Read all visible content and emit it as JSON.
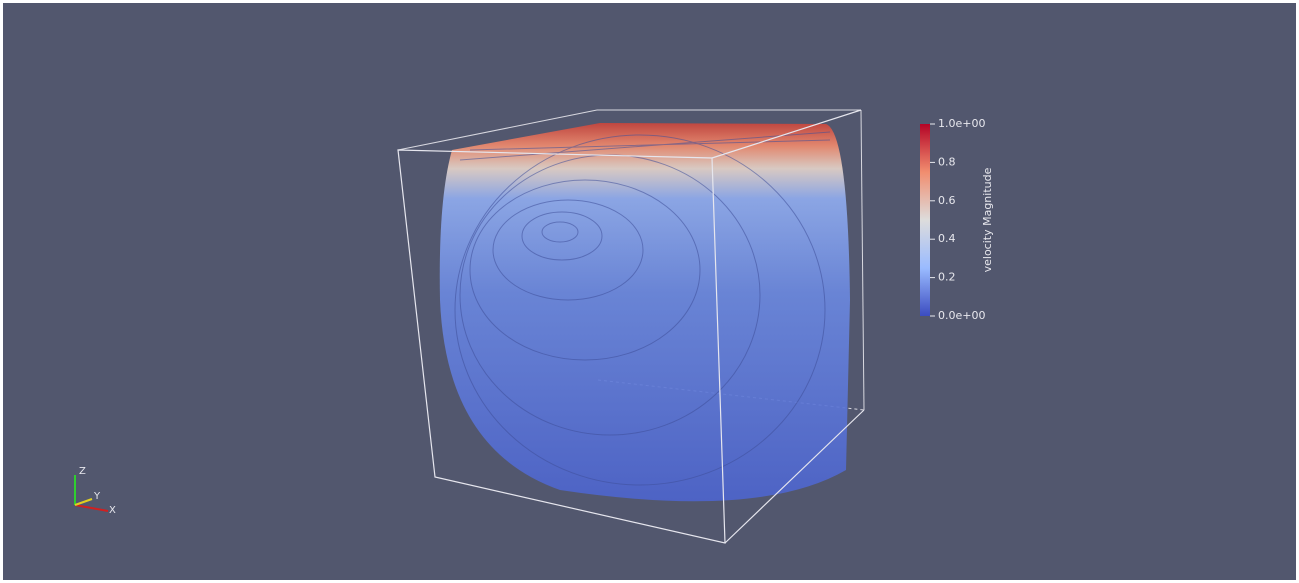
{
  "colorbar": {
    "title": "velocity Magnitude",
    "range": [
      0,
      1
    ],
    "ticks": [
      {
        "value": 1,
        "label": "1.0e+00"
      },
      0.8,
      0.6,
      0.4,
      0.2,
      {
        "value": 0,
        "label": "0.0e+00"
      }
    ]
  },
  "orientation_axes": {
    "z": "Z",
    "y": "Y",
    "x": "X"
  }
}
